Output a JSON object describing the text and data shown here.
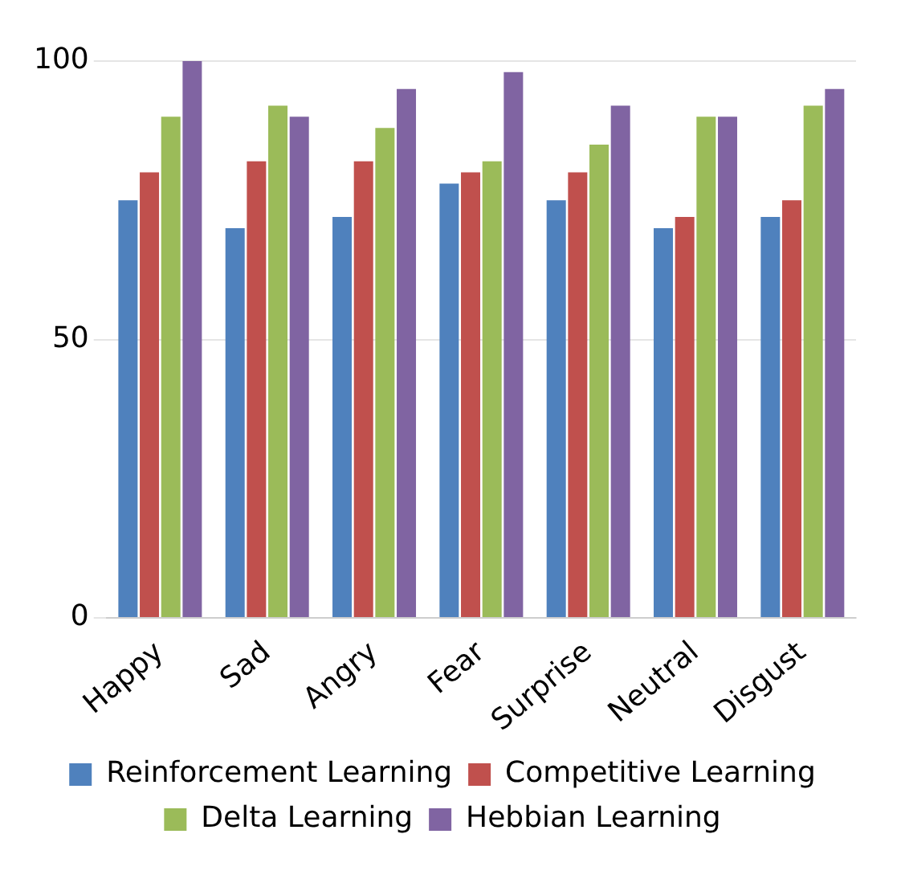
{
  "chart_data": {
    "type": "bar",
    "categories": [
      "Happy",
      "Sad",
      "Angry",
      "Fear",
      "Surprise",
      "Neutral",
      "Disgust"
    ],
    "series": [
      {
        "name": "Reinforcement Learning",
        "color": "#4f81bd",
        "values": [
          75,
          70,
          72,
          78,
          75,
          70,
          72
        ]
      },
      {
        "name": "Competitive Learning",
        "color": "#c0504d",
        "values": [
          80,
          82,
          82,
          80,
          80,
          72,
          75
        ]
      },
      {
        "name": "Delta Learning",
        "color": "#9bbb59",
        "values": [
          90,
          92,
          88,
          82,
          85,
          90,
          92
        ]
      },
      {
        "name": "Hebbian Learning",
        "color": "#8064a2",
        "values": [
          100,
          90,
          95,
          98,
          92,
          90,
          95
        ]
      }
    ],
    "ylim": [
      0,
      100
    ],
    "yticks": [
      0,
      50,
      100
    ],
    "grid": "y",
    "legend": "bottom"
  }
}
